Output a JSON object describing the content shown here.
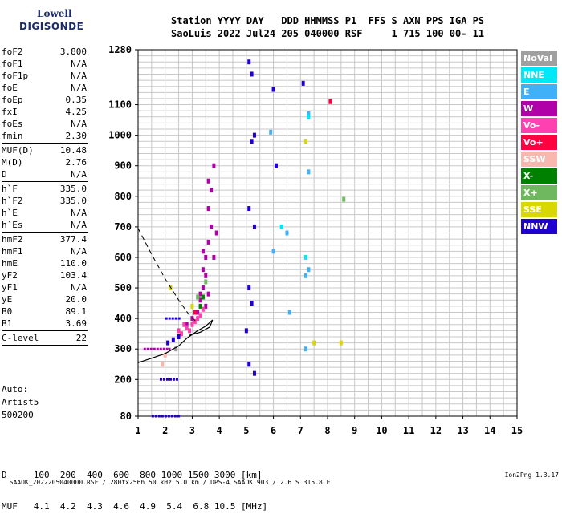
{
  "logo": {
    "line1": "Lowell",
    "line2": "DIGISONDE"
  },
  "header": {
    "row1": "Station YYYY DAY   DDD HHMMSS P1  FFS S AXN PPS IGA PS",
    "row2": "SaoLuis 2022 Jul24 205 040000 RSF     1 715 100 00- 11"
  },
  "params": [
    [
      {
        "name": "foF2",
        "value": "3.800"
      },
      {
        "name": "foF1",
        "value": "N/A"
      },
      {
        "name": "foF1p",
        "value": "N/A"
      },
      {
        "name": "foE",
        "value": "N/A"
      },
      {
        "name": "foEp",
        "value": "0.35"
      },
      {
        "name": "fxI",
        "value": "4.25"
      },
      {
        "name": "foEs",
        "value": "N/A"
      },
      {
        "name": "fmin",
        "value": "2.30"
      }
    ],
    [
      {
        "name": "MUF(D)",
        "value": "10.48"
      },
      {
        "name": "M(D)",
        "value": "2.76"
      },
      {
        "name": "D",
        "value": "N/A"
      }
    ],
    [
      {
        "name": "h`F",
        "value": "335.0"
      },
      {
        "name": "h`F2",
        "value": "335.0"
      },
      {
        "name": "h`E",
        "value": "N/A"
      },
      {
        "name": "h`Es",
        "value": "N/A"
      }
    ],
    [
      {
        "name": "hmF2",
        "value": "377.4"
      },
      {
        "name": "hmF1",
        "value": "N/A"
      },
      {
        "name": "hmE",
        "value": "110.0"
      },
      {
        "name": "yF2",
        "value": "103.4"
      },
      {
        "name": "yF1",
        "value": "N/A"
      },
      {
        "name": "yE",
        "value": "20.0"
      },
      {
        "name": "B0",
        "value": "89.1"
      },
      {
        "name": "B1",
        "value": "3.69"
      }
    ],
    [
      {
        "name": "C-level",
        "value": "22"
      }
    ]
  ],
  "auto": {
    "line1": "Auto:",
    "line2": "Artist5",
    "line3": "500200"
  },
  "legend": [
    {
      "label": "NoVal",
      "color": "#a0a0a0"
    },
    {
      "label": "NNE",
      "color": "#00e8f8"
    },
    {
      "label": "E",
      "color": "#40b0f8"
    },
    {
      "label": "W",
      "color": "#b000a8"
    },
    {
      "label": "Vo-",
      "color": "#ff40b0"
    },
    {
      "label": "Vo+",
      "color": "#ff0040"
    },
    {
      "label": "SSW",
      "color": "#f8b8b0"
    },
    {
      "label": "X-",
      "color": "#008000"
    },
    {
      "label": "X+",
      "color": "#70b860"
    },
    {
      "label": "SSE",
      "color": "#d8d800"
    },
    {
      "label": "NNW",
      "color": "#2000d0"
    }
  ],
  "chart_data": {
    "type": "scatter",
    "xlim": [
      1,
      15
    ],
    "ylim": [
      80,
      1280
    ],
    "x_ticks": [
      1,
      2,
      3,
      4,
      5,
      6,
      7,
      8,
      9,
      10,
      11,
      12,
      13,
      14,
      15
    ],
    "y_ticks": [
      80,
      200,
      300,
      400,
      500,
      600,
      700,
      800,
      900,
      1000,
      1100,
      1280
    ],
    "grid": true,
    "series": [
      {
        "name": "W",
        "color": "#b000a8",
        "points": [
          [
            3.2,
            420
          ],
          [
            3.3,
            460
          ],
          [
            3.4,
            500
          ],
          [
            3.5,
            540
          ],
          [
            3.5,
            600
          ],
          [
            3.6,
            650
          ],
          [
            3.7,
            700
          ],
          [
            3.6,
            760
          ],
          [
            3.7,
            820
          ],
          [
            3.4,
            560
          ],
          [
            3.3,
            480
          ],
          [
            3.6,
            480
          ],
          [
            3.8,
            600
          ],
          [
            3.9,
            680
          ],
          [
            3.5,
            440
          ],
          [
            3.0,
            400
          ],
          [
            2.8,
            380
          ],
          [
            3.6,
            850
          ],
          [
            3.8,
            900
          ],
          [
            3.4,
            620
          ]
        ]
      },
      {
        "name": "Vo-",
        "color": "#ff40b0",
        "points": [
          [
            2.7,
            380
          ],
          [
            2.8,
            370
          ],
          [
            2.9,
            360
          ],
          [
            3.0,
            380
          ],
          [
            3.1,
            390
          ],
          [
            3.2,
            400
          ],
          [
            3.3,
            410
          ],
          [
            2.5,
            360
          ],
          [
            2.6,
            350
          ],
          [
            3.4,
            430
          ]
        ]
      },
      {
        "name": "NNW",
        "color": "#2000d0",
        "points": [
          [
            5.1,
            1240
          ],
          [
            5.2,
            1200
          ],
          [
            5.3,
            1000
          ],
          [
            5.2,
            980
          ],
          [
            5.1,
            760
          ],
          [
            5.3,
            700
          ],
          [
            5.1,
            500
          ],
          [
            5.2,
            450
          ],
          [
            5.1,
            250
          ],
          [
            5.3,
            220
          ],
          [
            6.0,
            1150
          ],
          [
            6.1,
            900
          ],
          [
            5.0,
            360
          ],
          [
            2.3,
            330
          ],
          [
            2.1,
            320
          ],
          [
            2.5,
            340
          ],
          [
            7.1,
            1170
          ]
        ]
      },
      {
        "name": "E",
        "color": "#40b0f8",
        "points": [
          [
            7.3,
            1070
          ],
          [
            7.2,
            980
          ],
          [
            7.3,
            880
          ],
          [
            6.5,
            680
          ],
          [
            7.3,
            560
          ],
          [
            7.2,
            540
          ],
          [
            6.6,
            420
          ],
          [
            7.2,
            300
          ],
          [
            6.0,
            620
          ],
          [
            5.9,
            1010
          ]
        ]
      },
      {
        "name": "NNE",
        "color": "#00e8f8",
        "points": [
          [
            7.3,
            1060
          ],
          [
            7.2,
            600
          ],
          [
            6.3,
            700
          ]
        ]
      },
      {
        "name": "SSE",
        "color": "#d8d800",
        "points": [
          [
            7.2,
            980
          ],
          [
            8.5,
            320
          ],
          [
            7.5,
            320
          ],
          [
            2.2,
            500
          ],
          [
            3.0,
            440
          ]
        ]
      },
      {
        "name": "X+",
        "color": "#70b860",
        "points": [
          [
            8.6,
            790
          ],
          [
            3.2,
            470
          ],
          [
            3.5,
            520
          ]
        ]
      },
      {
        "name": "X-",
        "color": "#008000",
        "points": [
          [
            3.3,
            440
          ],
          [
            3.4,
            470
          ]
        ]
      },
      {
        "name": "Vo+",
        "color": "#ff0040",
        "points": [
          [
            8.1,
            1110
          ],
          [
            3.1,
            420
          ]
        ]
      },
      {
        "name": "SSW",
        "color": "#f8b8b0",
        "points": [
          [
            1.9,
            250
          ],
          [
            2.0,
            280
          ]
        ]
      },
      {
        "name": "NoVal",
        "color": "#a0a0a0",
        "points": [
          [
            2.4,
            300
          ]
        ]
      }
    ],
    "profile_curve": [
      [
        1.0,
        255
      ],
      [
        1.5,
        270
      ],
      [
        2.0,
        285
      ],
      [
        2.5,
        310
      ],
      [
        2.8,
        335
      ],
      [
        3.2,
        360
      ],
      [
        3.5,
        375
      ],
      [
        3.75,
        395
      ],
      [
        3.65,
        372
      ],
      [
        3.3,
        355
      ],
      [
        2.9,
        345
      ]
    ],
    "dashed_line": [
      [
        1.0,
        695
      ],
      [
        1.5,
        610
      ],
      [
        2.0,
        530
      ],
      [
        2.5,
        460
      ],
      [
        2.9,
        410
      ],
      [
        3.2,
        385
      ]
    ],
    "hline_traces": [
      {
        "x0": 1.5,
        "x1": 2.6,
        "y": 80,
        "color": "#2000d0"
      },
      {
        "x0": 1.8,
        "x1": 2.5,
        "y": 200,
        "color": "#2000d0"
      },
      {
        "x0": 2.0,
        "x1": 2.6,
        "y": 400,
        "color": "#2000d0"
      },
      {
        "x0": 1.2,
        "x1": 2.2,
        "y": 300,
        "color": "#b000a8"
      }
    ]
  },
  "muf_table": {
    "row1": "D     100  200  400  600  800 1000 1500 3000 [km]",
    "row2": "MUF   4.1  4.2  4.3  4.6  4.9  5.4  6.8 10.5 [MHz]"
  },
  "footer": {
    "text": "SAAOK_2022205040000.RSF / 280fx256h 50 kHz 5.0 km / DPS-4 SAAOK 903 / 2.6 S 315.8 E",
    "version": "Ion2Png 1.3.17"
  }
}
